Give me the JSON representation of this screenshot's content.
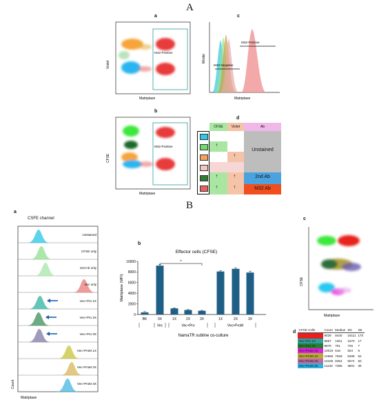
{
  "section_A": {
    "letter": "A",
    "panel_a": {
      "letter": "a",
      "gate_label": "M32-Positive",
      "ylabel": "Violet",
      "xlabel": "Matriptase"
    },
    "panel_b": {
      "letter": "b",
      "gate_label": "M32-Positive",
      "ylabel": "CFSE",
      "xlabel": "Matriptase"
    },
    "panel_c": {
      "letter": "c",
      "label_pos": "M32-Positive",
      "label_neg": "M32-Negative",
      "ylabel": "Modal",
      "xlabel": "Matriptase"
    },
    "panel_d": {
      "letter": "d",
      "headers": [
        "CFSE",
        "Violet",
        "Ab"
      ],
      "rows": [
        {
          "swatch": "#2ec8e6",
          "cfse": "",
          "violet": "",
          "ab": ""
        },
        {
          "swatch": "#6fd86f",
          "cfse": "†",
          "violet": "",
          "ab": "Unstained"
        },
        {
          "swatch": "#f5a35a",
          "cfse": "",
          "violet": "†",
          "ab": ""
        },
        {
          "swatch": "#f2c5c5",
          "cfse": "",
          "violet": "",
          "ab": ""
        },
        {
          "swatch": "#2e7d32",
          "cfse": "†",
          "violet": "†",
          "ab": "2nd Ab"
        },
        {
          "swatch": "#e86060",
          "cfse": "†",
          "violet": "†",
          "ab": "M32 Ab"
        }
      ],
      "colors": {
        "cfse_col": "#a8e6a1",
        "violet_col": "#f5c4a8",
        "ab_col": "#f0b8e8",
        "unstained": "#bdbdbd",
        "second_ab": "#4aa3df",
        "m32_ab": "#f04e1f"
      }
    }
  },
  "section_B": {
    "letter": "B",
    "panel_a": {
      "letter": "a",
      "title": "CSFE channel",
      "rows": [
        {
          "label": "Unstained",
          "color": "#29c5e6",
          "arrow": false
        },
        {
          "label": "CFSE only",
          "color": "#8fe08f",
          "arrow": false
        },
        {
          "label": "2nd Ab only",
          "color": "#a8e6a8",
          "arrow": false
        },
        {
          "label": "Vec only",
          "color": "#e87a7a",
          "arrow": false
        },
        {
          "label": "Vec+Pro 1X",
          "color": "#2fb3a0",
          "arrow": true
        },
        {
          "label": "Vec+Pro 2X",
          "color": "#3e8e5a",
          "arrow": true
        },
        {
          "label": "Vec+Pro 3X",
          "color": "#7f7aa8",
          "arrow": true
        },
        {
          "label": "Vec+ProM 1X",
          "color": "#c9c43a",
          "arrow": false
        },
        {
          "label": "Vec+ProM 2X",
          "color": "#d7b85a",
          "arrow": false
        },
        {
          "label": "Vec+ProM 3X",
          "color": "#45b8e0",
          "arrow": false
        }
      ],
      "ylabel": "Count",
      "xlabel": "Matriptase"
    },
    "panel_b": {
      "letter": "b",
      "title": "Effector cells (CFSE)",
      "significance": "*"
    },
    "panel_c": {
      "letter": "c",
      "ylabel": "CFSE",
      "xlabel": "Matriptase"
    },
    "panel_d": {
      "letter": "d",
      "headers": [
        "CFSE Cells",
        "Count",
        "Median",
        "SD",
        "SE"
      ],
      "rows": [
        {
          "label": "",
          "color": "#e8201f",
          "count": "9029",
          "median": "8440",
          "sd": "16111",
          "se": "170"
        },
        {
          "label": "Vec+Pro 1X",
          "color": "#2ca3a3",
          "count": "9957",
          "median": "1001",
          "sd": "1670",
          "se": "17"
        },
        {
          "label": "Vec+Pro 2X",
          "color": "#2e7d32",
          "count": "9879",
          "median": "761",
          "sd": "726",
          "se": "7"
        },
        {
          "label": "Vec+ProM 1X",
          "color": "#e020e0",
          "count": "10019",
          "median": "616",
          "sd": "504",
          "se": "5"
        },
        {
          "label": "Vec+ProM 1X",
          "color": "#b8a83a",
          "count": "10586",
          "median": "7928",
          "sd": "5308",
          "se": "52"
        },
        {
          "label": "Vec+ProM 2X",
          "color": "#c06aa0",
          "count": "10435",
          "median": "8354",
          "sd": "5074",
          "se": "50"
        },
        {
          "label": "Vec+ProM 3X",
          "color": "#2fb0e0",
          "count": "11232",
          "median": "7385",
          "sd": "3801",
          "se": "36"
        }
      ]
    }
  },
  "chart_data": {
    "type": "bar",
    "title": "Effector cells (CFSE)",
    "xlabel": "NamaTR subline co-culture",
    "ylabel": "Matriptase (MFI)",
    "ylim": [
      0,
      10000
    ],
    "yticks": [
      "0",
      "2000",
      "4000",
      "6000",
      "8000",
      "10000"
    ],
    "categories": [
      "BK",
      "0X",
      "1X",
      "2X",
      "3X",
      "1X",
      "2X",
      "3X"
    ],
    "groups": [
      "Vec",
      "Vec+Pro",
      "Vec+ProM"
    ],
    "values": [
      400,
      9200,
      1150,
      850,
      700,
      8100,
      8600,
      7900
    ],
    "errors": [
      150,
      200,
      100,
      80,
      70,
      150,
      200,
      250
    ],
    "bar_color": "#1f5f86",
    "grid": false
  }
}
